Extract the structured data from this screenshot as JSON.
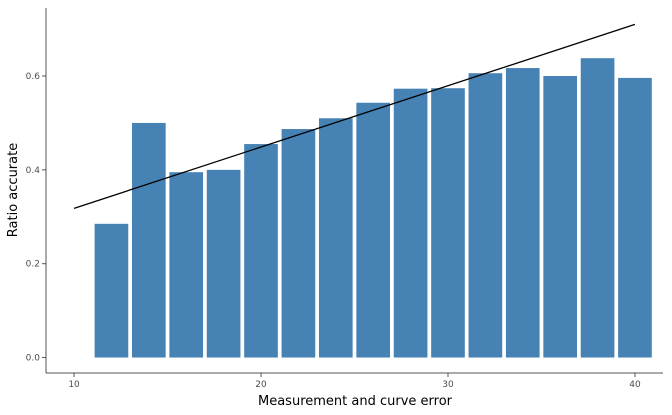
{
  "chart_data": {
    "type": "bar",
    "xlabel": "Measurement and curve error",
    "ylabel": "Ratio accurate",
    "xlim": [
      8.5,
      41.5
    ],
    "ylim": [
      -0.033,
      0.745
    ],
    "xticks": [
      10,
      20,
      30,
      40
    ],
    "yticks": [
      0.0,
      0.2,
      0.4,
      0.6
    ],
    "ytick_labels": [
      "0.0",
      "0.2",
      "0.4",
      "0.6"
    ],
    "bar_width": 1.8,
    "bar_color": "#4682B4",
    "series": [
      {
        "type": "bar",
        "x": [
          12,
          14,
          16,
          18,
          20,
          22,
          24,
          26,
          28,
          30,
          32,
          34,
          36,
          38,
          40
        ],
        "values": [
          0.285,
          0.5,
          0.395,
          0.4,
          0.455,
          0.487,
          0.51,
          0.543,
          0.573,
          0.574,
          0.606,
          0.617,
          0.6,
          0.638,
          0.596
        ]
      },
      {
        "type": "line",
        "x": [
          10,
          40
        ],
        "values": [
          0.318,
          0.71
        ],
        "color": "#000000"
      }
    ],
    "grid": false,
    "legend": "none"
  }
}
